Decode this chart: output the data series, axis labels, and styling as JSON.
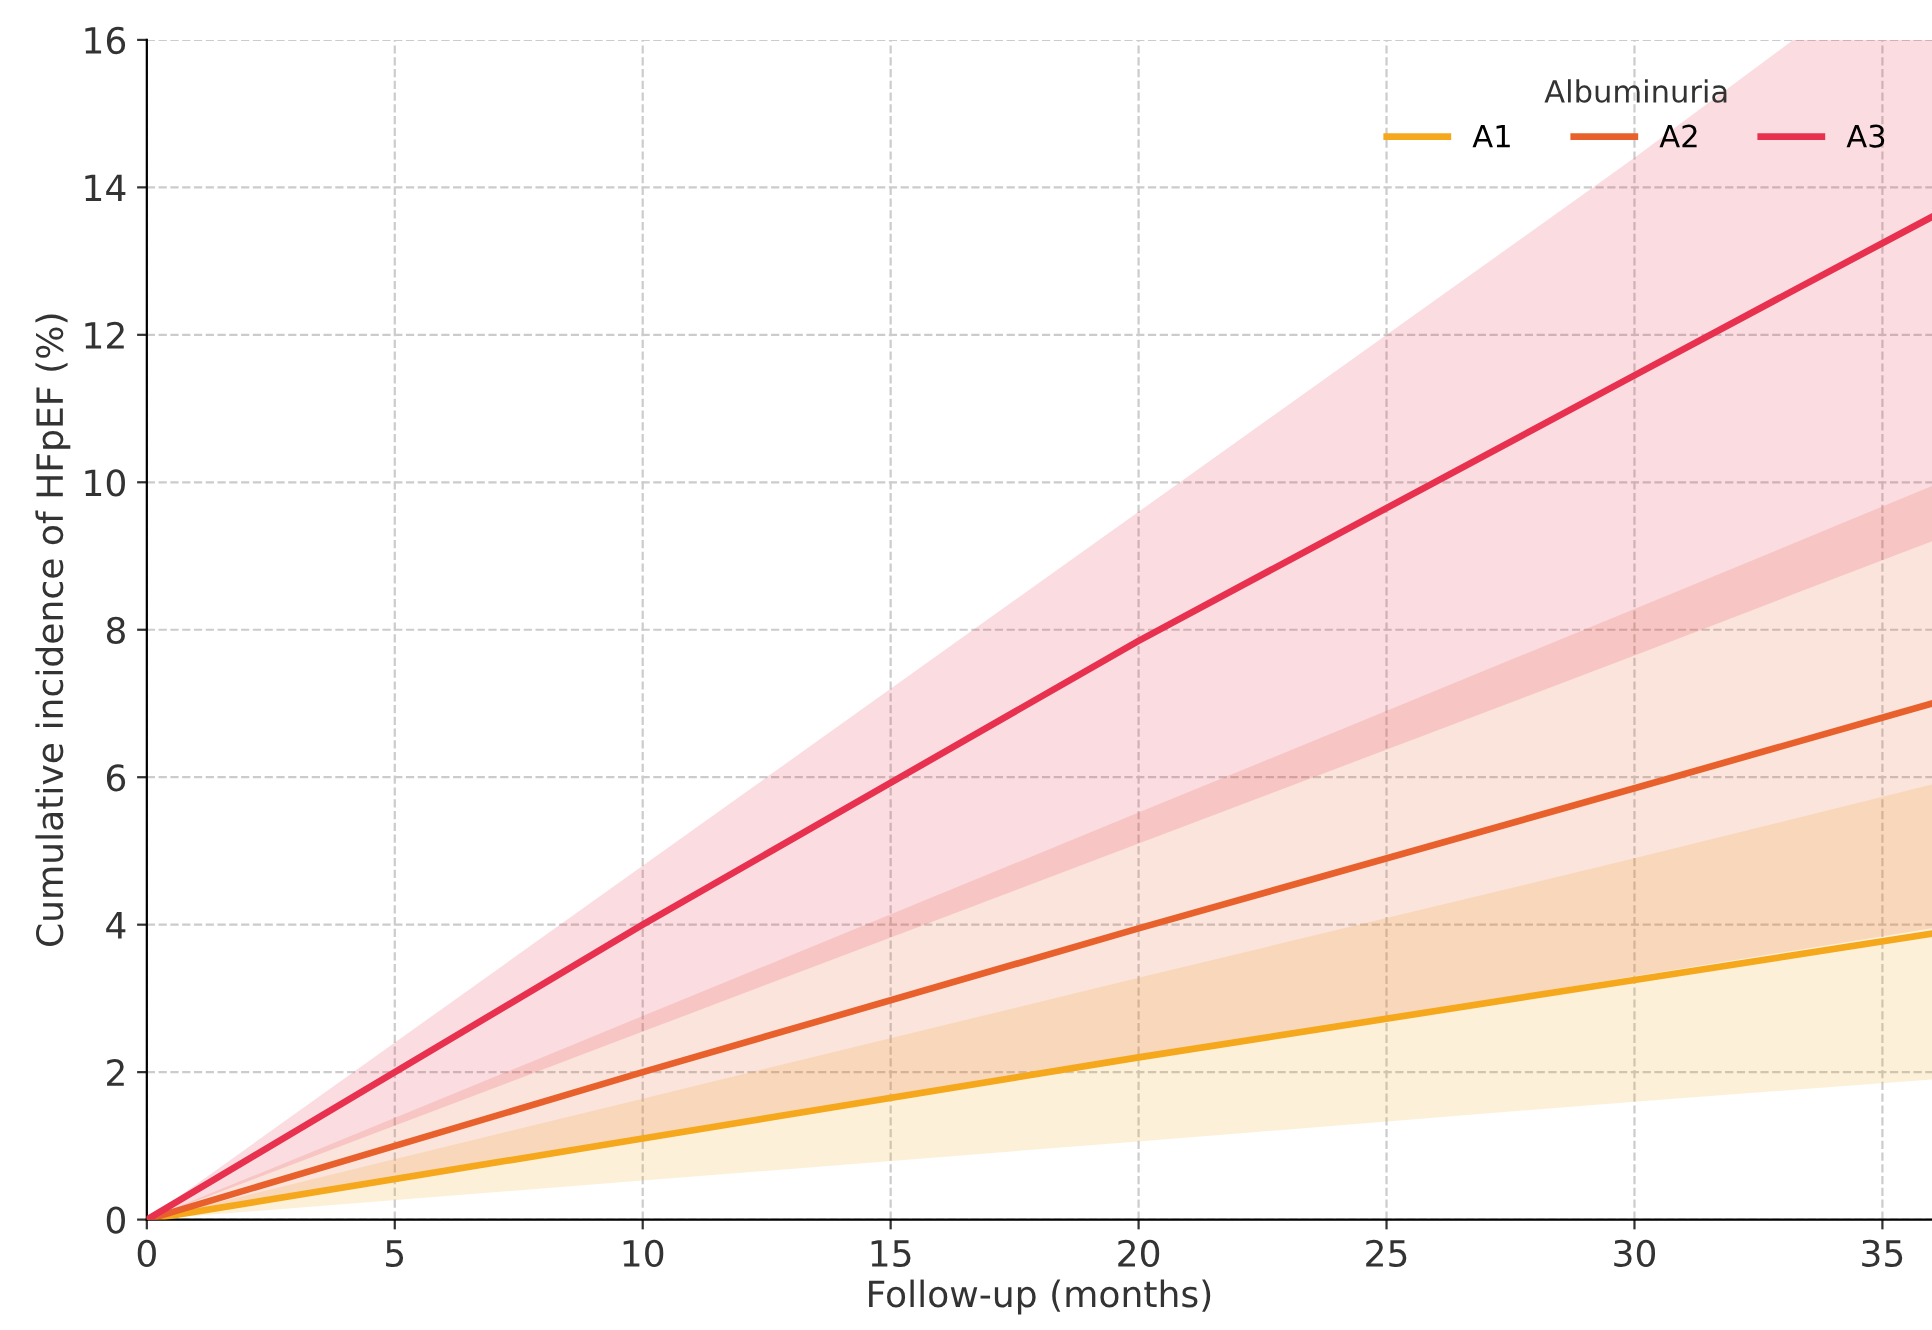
{
  "chart_data": {
    "type": "line",
    "xlabel": "Follow-up (months)",
    "ylabel": "Cumulative incidence of HFpEF (%)",
    "legend_title": "Albuminuria",
    "legend": "top right",
    "grid": true,
    "marker": "none",
    "xlim": [
      0,
      36
    ],
    "ylim": [
      0,
      16
    ],
    "xticks": [
      0,
      5,
      10,
      15,
      20,
      25,
      30,
      35
    ],
    "yticks": [
      0,
      2,
      4,
      6,
      8,
      10,
      12,
      14,
      16
    ],
    "series": [
      {
        "name": "A1",
        "color": "#f5a81c",
        "x": [
          0,
          10,
          20,
          30,
          36
        ],
        "values": [
          0,
          1.1,
          2.2,
          3.25,
          3.88
        ],
        "lower": [
          0,
          0.53,
          1.06,
          1.6,
          1.9
        ],
        "upper": [
          0,
          1.64,
          3.28,
          4.9,
          5.9
        ]
      },
      {
        "name": "A2",
        "color": "#e8612c",
        "x": [
          0,
          10,
          20,
          30,
          36
        ],
        "values": [
          0,
          2.0,
          3.95,
          5.85,
          7.0
        ],
        "lower": [
          0,
          1.1,
          2.2,
          3.3,
          3.95
        ],
        "upper": [
          0,
          2.76,
          5.52,
          8.28,
          9.95
        ]
      },
      {
        "name": "A3",
        "color": "#e8304f",
        "x": [
          0,
          10,
          20,
          30,
          33.2,
          36
        ],
        "values": [
          0,
          4.0,
          7.85,
          11.45,
          12.6,
          13.6
        ],
        "lower": [
          0,
          2.55,
          5.1,
          7.65,
          8.48,
          9.2
        ],
        "upper": [
          0,
          4.8,
          9.6,
          14.4,
          16,
          16
        ]
      }
    ]
  }
}
